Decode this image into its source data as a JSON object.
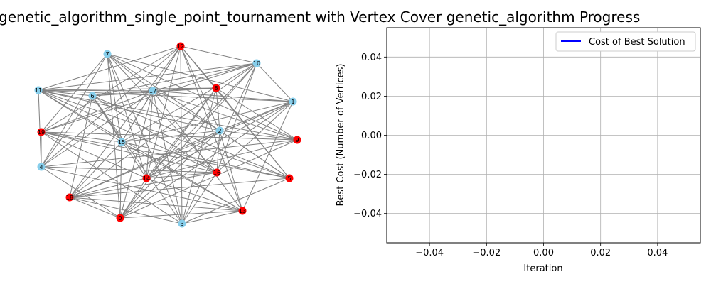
{
  "chart_data": [
    {
      "type": "network",
      "title": "genetic_algorithm_single_point_tournament with Vertex Cover",
      "colors": {
        "cover": "#ff0000",
        "other": "#87ceeb",
        "edge": "#808080"
      },
      "nodes": [
        {
          "id": "1",
          "label": "1",
          "in_cover": false
        },
        {
          "id": "2",
          "label": "2",
          "in_cover": false
        },
        {
          "id": "3",
          "label": "3",
          "in_cover": false
        },
        {
          "id": "4",
          "label": "4",
          "in_cover": false
        },
        {
          "id": "6",
          "label": "6",
          "in_cover": false
        },
        {
          "id": "7",
          "label": "7",
          "in_cover": false
        },
        {
          "id": "10",
          "label": "10",
          "in_cover": false
        },
        {
          "id": "11",
          "label": "11",
          "in_cover": false
        },
        {
          "id": "15",
          "label": "15",
          "in_cover": false
        },
        {
          "id": "17",
          "label": "17",
          "in_cover": false
        },
        {
          "id": "r_top",
          "label": "12",
          "in_cover": true
        },
        {
          "id": "r_ur",
          "label": "8",
          "in_cover": true
        },
        {
          "id": "r_right",
          "label": "9",
          "in_cover": true
        },
        {
          "id": "r_rlow",
          "label": "5",
          "in_cover": true
        },
        {
          "id": "r_brm",
          "label": "13",
          "in_cover": true
        },
        {
          "id": "r_cen",
          "label": "16",
          "in_cover": true
        },
        {
          "id": "r_mid",
          "label": "14",
          "in_cover": true
        },
        {
          "id": "r_bot",
          "label": "0",
          "in_cover": true
        },
        {
          "id": "r_bl",
          "label": "18",
          "in_cover": true
        },
        {
          "id": "r_left",
          "label": "19",
          "in_cover": true
        }
      ]
    },
    {
      "type": "line",
      "title": "genetic_algorithm Progress",
      "xlabel": "Iteration",
      "ylabel": "Best Cost (Number of Vertices)",
      "xlim": [
        -0.055,
        0.055
      ],
      "ylim": [
        -0.055,
        0.055
      ],
      "xticks": [
        "−0.04",
        "−0.02",
        "0.00",
        "0.02",
        "0.04"
      ],
      "xtick_values": [
        -0.04,
        -0.02,
        0.0,
        0.02,
        0.04
      ],
      "yticks": [
        "−0.04",
        "−0.02",
        "0.00",
        "0.02",
        "0.04"
      ],
      "ytick_values": [
        -0.04,
        -0.02,
        0.0,
        0.02,
        0.04
      ],
      "grid": true,
      "legend_position": "top-right",
      "series": [
        {
          "name": "Cost of Best Solution",
          "color": "#0000ff",
          "x": [],
          "y": []
        }
      ]
    }
  ]
}
